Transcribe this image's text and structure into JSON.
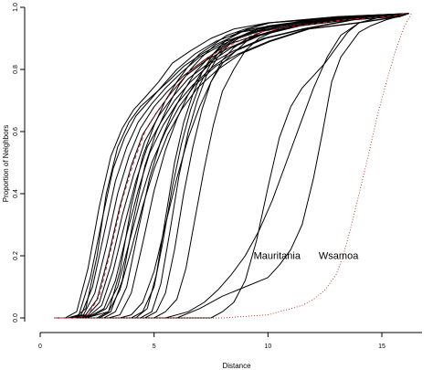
{
  "chart_data": {
    "type": "line",
    "title": "",
    "xlabel": "Distance",
    "ylabel": "Proportion of Neighbors",
    "xlim": [
      0,
      17
    ],
    "ylim": [
      0,
      1.0
    ],
    "x_ticks": [
      "0",
      "5",
      "10",
      "15"
    ],
    "y_ticks": [
      "0.0",
      "0.2",
      "0.4",
      "0.6",
      "0.8",
      "1.0"
    ],
    "grid": false,
    "legend": "none",
    "annotations": [
      {
        "text": "Mauritania",
        "x": 10.4,
        "y": 0.19
      },
      {
        "text": "Wsamoa",
        "x": 13.1,
        "y": 0.19
      }
    ],
    "colors": {
      "black_series": "#000000",
      "red_series": "#cc2222"
    },
    "series": [
      {
        "color": "#000000",
        "style": "solid",
        "x": [
          0.6,
          1.1,
          1.6,
          2.1,
          2.6,
          3.1,
          3.6,
          4.1,
          4.6,
          5.2,
          5.8,
          6.6,
          7.5,
          8.5,
          10,
          12,
          14,
          16.2
        ],
        "y": [
          0,
          0,
          0.02,
          0.16,
          0.36,
          0.52,
          0.61,
          0.67,
          0.71,
          0.76,
          0.82,
          0.86,
          0.9,
          0.93,
          0.95,
          0.96,
          0.97,
          0.98
        ]
      },
      {
        "color": "#000000",
        "style": "solid",
        "x": [
          0.6,
          1.2,
          1.7,
          2.2,
          2.7,
          3.2,
          3.7,
          4.2,
          4.8,
          5.4,
          6.0,
          6.8,
          7.7,
          8.8,
          10.4,
          12.5,
          14.6,
          16.2
        ],
        "y": [
          0,
          0,
          0.01,
          0.13,
          0.31,
          0.48,
          0.58,
          0.65,
          0.7,
          0.75,
          0.8,
          0.85,
          0.89,
          0.92,
          0.94,
          0.96,
          0.97,
          0.98
        ]
      },
      {
        "color": "#000000",
        "style": "solid",
        "x": [
          0.6,
          1.3,
          1.8,
          2.3,
          2.8,
          3.3,
          3.8,
          4.3,
          4.9,
          5.5,
          6.2,
          7.0,
          8.0,
          9.2,
          10.8,
          13,
          15,
          16.2
        ],
        "y": [
          0,
          0,
          0.01,
          0.1,
          0.27,
          0.44,
          0.55,
          0.63,
          0.69,
          0.74,
          0.79,
          0.84,
          0.88,
          0.92,
          0.94,
          0.96,
          0.97,
          0.98
        ]
      },
      {
        "color": "#000000",
        "style": "solid",
        "x": [
          0.6,
          1.4,
          1.9,
          2.4,
          2.9,
          3.4,
          3.9,
          4.4,
          5.0,
          5.6,
          6.3,
          7.2,
          8.2,
          9.5,
          11.2,
          13.4,
          15.2,
          16.2
        ],
        "y": [
          0,
          0,
          0.01,
          0.08,
          0.23,
          0.4,
          0.52,
          0.61,
          0.68,
          0.73,
          0.78,
          0.83,
          0.88,
          0.91,
          0.94,
          0.96,
          0.97,
          0.98
        ]
      },
      {
        "color": "#000000",
        "style": "solid",
        "x": [
          0.6,
          1.5,
          2.0,
          2.5,
          3.0,
          3.5,
          4.0,
          4.5,
          5.1,
          5.7,
          6.4,
          7.3,
          8.3,
          9.6,
          11.3,
          13.5,
          15.3,
          16.2
        ],
        "y": [
          0,
          0,
          0.01,
          0.06,
          0.2,
          0.36,
          0.49,
          0.59,
          0.66,
          0.72,
          0.78,
          0.83,
          0.87,
          0.91,
          0.94,
          0.96,
          0.97,
          0.98
        ]
      },
      {
        "color": "#000000",
        "style": "solid",
        "x": [
          0.6,
          1.6,
          2.1,
          2.6,
          3.1,
          3.6,
          4.1,
          4.6,
          5.2,
          5.8,
          6.5,
          7.4,
          8.4,
          9.7,
          11.4,
          13.6,
          15.4,
          16.2
        ],
        "y": [
          0,
          0,
          0.01,
          0.05,
          0.17,
          0.33,
          0.46,
          0.57,
          0.65,
          0.71,
          0.77,
          0.82,
          0.87,
          0.91,
          0.94,
          0.96,
          0.97,
          0.98
        ]
      },
      {
        "color": "#000000",
        "style": "solid",
        "x": [
          0.6,
          1.7,
          2.2,
          2.7,
          3.2,
          3.7,
          4.2,
          4.7,
          5.3,
          5.9,
          6.6,
          7.5,
          8.5,
          9.8,
          11.5,
          13.7,
          15.5,
          16.2
        ],
        "y": [
          0,
          0,
          0.01,
          0.04,
          0.15,
          0.3,
          0.44,
          0.55,
          0.63,
          0.7,
          0.76,
          0.82,
          0.86,
          0.9,
          0.93,
          0.96,
          0.97,
          0.98
        ]
      },
      {
        "color": "#000000",
        "style": "solid",
        "x": [
          0.6,
          1.8,
          2.3,
          2.8,
          3.3,
          3.8,
          4.3,
          4.8,
          5.4,
          6.0,
          6.7,
          7.6,
          8.6,
          9.9,
          11.6,
          13.8,
          15.6,
          16.2
        ],
        "y": [
          0,
          0,
          0.01,
          0.03,
          0.12,
          0.27,
          0.41,
          0.53,
          0.62,
          0.69,
          0.75,
          0.81,
          0.86,
          0.9,
          0.93,
          0.96,
          0.97,
          0.98
        ]
      },
      {
        "color": "#000000",
        "style": "solid",
        "x": [
          0.6,
          1.5,
          2.0,
          2.5,
          2.9,
          3.4,
          3.9,
          4.4,
          5.0,
          5.6,
          6.3,
          7.1,
          8.1,
          9.4,
          11.1,
          13.3,
          15.2,
          16.2
        ],
        "y": [
          0,
          0,
          0.03,
          0.2,
          0.4,
          0.55,
          0.63,
          0.68,
          0.72,
          0.76,
          0.81,
          0.85,
          0.89,
          0.92,
          0.94,
          0.96,
          0.97,
          0.98
        ]
      },
      {
        "color": "#000000",
        "style": "solid",
        "x": [
          0.6,
          1.9,
          2.4,
          2.9,
          3.4,
          3.9,
          4.4,
          4.9,
          5.5,
          6.1,
          6.8,
          7.7,
          8.7,
          10.0,
          11.7,
          13.9,
          15.7,
          16.2
        ],
        "y": [
          0,
          0,
          0.01,
          0.03,
          0.1,
          0.24,
          0.38,
          0.5,
          0.6,
          0.68,
          0.75,
          0.81,
          0.85,
          0.89,
          0.93,
          0.95,
          0.97,
          0.98
        ]
      },
      {
        "color": "#000000",
        "style": "solid",
        "x": [
          0.6,
          2.0,
          2.5,
          3.0,
          3.5,
          4.0,
          4.5,
          5.0,
          5.6,
          6.2,
          6.9,
          7.8,
          8.8,
          10.1,
          11.8,
          14.0,
          15.8,
          16.2
        ],
        "y": [
          0,
          0,
          0.01,
          0.02,
          0.09,
          0.22,
          0.36,
          0.48,
          0.59,
          0.67,
          0.74,
          0.8,
          0.85,
          0.89,
          0.93,
          0.95,
          0.97,
          0.98
        ]
      },
      {
        "color": "#000000",
        "style": "solid",
        "x": [
          0.6,
          2.5,
          3.0,
          3.5,
          4.0,
          4.5,
          5.0,
          5.5,
          6.0,
          6.5,
          7.0,
          7.6,
          8.2,
          9.0,
          10.0,
          11.5,
          13,
          16.2
        ],
        "y": [
          0,
          0,
          0.02,
          0.15,
          0.36,
          0.52,
          0.62,
          0.7,
          0.76,
          0.81,
          0.85,
          0.88,
          0.91,
          0.93,
          0.95,
          0.96,
          0.97,
          0.98
        ]
      },
      {
        "color": "#000000",
        "style": "solid",
        "x": [
          0.6,
          2.6,
          3.1,
          3.6,
          4.1,
          4.6,
          5.1,
          5.6,
          6.1,
          6.6,
          7.1,
          7.7,
          8.3,
          9.1,
          10.1,
          11.6,
          13.1,
          16.2
        ],
        "y": [
          0,
          0,
          0.02,
          0.12,
          0.32,
          0.49,
          0.6,
          0.68,
          0.75,
          0.8,
          0.84,
          0.88,
          0.9,
          0.93,
          0.95,
          0.96,
          0.97,
          0.98
        ]
      },
      {
        "color": "#000000",
        "style": "solid",
        "x": [
          0.6,
          2.8,
          3.3,
          3.8,
          4.3,
          4.8,
          5.3,
          5.8,
          6.3,
          6.8,
          7.3,
          7.9,
          8.5,
          9.3,
          10.3,
          11.8,
          13.3,
          16.2
        ],
        "y": [
          0,
          0,
          0.02,
          0.1,
          0.28,
          0.45,
          0.57,
          0.66,
          0.73,
          0.79,
          0.83,
          0.87,
          0.9,
          0.92,
          0.94,
          0.96,
          0.97,
          0.98
        ]
      },
      {
        "color": "#000000",
        "style": "solid",
        "x": [
          0.6,
          3.0,
          3.5,
          4.0,
          4.5,
          5.0,
          5.5,
          6.0,
          6.5,
          7.0,
          7.5,
          8.1,
          8.7,
          9.5,
          10.5,
          12.0,
          13.5,
          16.2
        ],
        "y": [
          0,
          0,
          0.01,
          0.08,
          0.24,
          0.41,
          0.54,
          0.64,
          0.72,
          0.78,
          0.83,
          0.87,
          0.9,
          0.92,
          0.94,
          0.96,
          0.97,
          0.98
        ]
      },
      {
        "color": "#000000",
        "style": "solid",
        "x": [
          0.6,
          4.0,
          4.5,
          5.0,
          5.4,
          5.8,
          6.2,
          6.6,
          7.0,
          7.5,
          8.0,
          8.6,
          9.2,
          10.0,
          11.0,
          12.5,
          14.0,
          16.2
        ],
        "y": [
          0,
          0,
          0.02,
          0.1,
          0.25,
          0.42,
          0.56,
          0.67,
          0.75,
          0.82,
          0.87,
          0.9,
          0.92,
          0.94,
          0.95,
          0.96,
          0.97,
          0.98
        ]
      },
      {
        "color": "#000000",
        "style": "solid",
        "x": [
          0.6,
          4.2,
          4.7,
          5.1,
          5.5,
          5.9,
          6.3,
          6.7,
          7.1,
          7.6,
          8.1,
          8.7,
          9.3,
          10.1,
          11.1,
          12.6,
          14.1,
          16.2
        ],
        "y": [
          0,
          0,
          0.03,
          0.14,
          0.32,
          0.5,
          0.63,
          0.72,
          0.79,
          0.85,
          0.89,
          0.92,
          0.93,
          0.94,
          0.95,
          0.96,
          0.97,
          0.98
        ]
      },
      {
        "color": "#000000",
        "style": "solid",
        "x": [
          0.6,
          4.4,
          4.9,
          5.3,
          5.7,
          6.1,
          6.5,
          6.9,
          7.3,
          7.8,
          8.3,
          8.9,
          9.5,
          10.3,
          11.3,
          12.8,
          14.3,
          16.2
        ],
        "y": [
          0,
          0,
          0.02,
          0.11,
          0.28,
          0.46,
          0.6,
          0.7,
          0.78,
          0.84,
          0.88,
          0.91,
          0.93,
          0.94,
          0.95,
          0.96,
          0.97,
          0.98
        ]
      },
      {
        "color": "#000000",
        "style": "solid",
        "x": [
          0.6,
          4.6,
          5.1,
          5.5,
          5.9,
          6.3,
          6.7,
          7.1,
          7.5,
          8.0,
          8.5,
          9.1,
          9.7,
          10.5,
          11.5,
          13.0,
          14.5,
          16.2
        ],
        "y": [
          0,
          0,
          0.02,
          0.08,
          0.22,
          0.4,
          0.55,
          0.67,
          0.76,
          0.83,
          0.87,
          0.9,
          0.92,
          0.94,
          0.95,
          0.96,
          0.97,
          0.98
        ]
      },
      {
        "color": "#000000",
        "style": "solid",
        "x": [
          0.6,
          5.0,
          5.5,
          6.0,
          6.4,
          6.8,
          7.2,
          7.6,
          8.0,
          8.5,
          9.0,
          9.6,
          10.2,
          11.0,
          12.0,
          13.5,
          15.0,
          16.2
        ],
        "y": [
          0,
          0,
          0.02,
          0.06,
          0.16,
          0.32,
          0.48,
          0.62,
          0.73,
          0.8,
          0.86,
          0.9,
          0.92,
          0.94,
          0.95,
          0.96,
          0.97,
          0.98
        ]
      },
      {
        "color": "#000000",
        "style": "solid",
        "x": [
          0.6,
          3.5,
          4.0,
          4.5,
          5.0,
          5.5,
          6.0,
          6.5,
          7.0,
          7.5,
          8.0,
          8.6,
          9.2,
          10.0,
          11.0,
          12.5,
          14.0,
          16.2
        ],
        "y": [
          0,
          0,
          0.01,
          0.05,
          0.15,
          0.3,
          0.45,
          0.58,
          0.68,
          0.76,
          0.82,
          0.86,
          0.9,
          0.92,
          0.94,
          0.96,
          0.97,
          0.98
        ]
      },
      {
        "color": "#000000",
        "style": "solid",
        "x": [
          0.6,
          5.5,
          6.5,
          7.2,
          7.8,
          8.4,
          9.0,
          9.6,
          10.2,
          10.8,
          11.4,
          12.0,
          12.6,
          13.2,
          14.0,
          15.0,
          16.2
        ],
        "y": [
          0,
          0,
          0.02,
          0.05,
          0.09,
          0.14,
          0.2,
          0.28,
          0.38,
          0.5,
          0.62,
          0.74,
          0.84,
          0.91,
          0.95,
          0.97,
          0.98
        ]
      },
      {
        "color": "#000000",
        "style": "solid",
        "x": [
          0.6,
          7.5,
          8.0,
          8.5,
          9.0,
          9.5,
          10.0,
          10.5,
          11.0,
          11.5,
          12.0,
          12.5,
          13.0,
          13.5,
          14.0,
          15.0,
          16.2
        ],
        "y": [
          0,
          0,
          0.02,
          0.05,
          0.12,
          0.25,
          0.42,
          0.58,
          0.68,
          0.74,
          0.78,
          0.82,
          0.87,
          0.92,
          0.95,
          0.97,
          0.98
        ]
      },
      {
        "color": "#000000",
        "style": "solid",
        "x": [
          0.6,
          6.0,
          7.0,
          8.0,
          9.0,
          10.0,
          10.5,
          11.0,
          11.5,
          12.0,
          12.4,
          12.8,
          13.2,
          13.6,
          14.0,
          14.5,
          15.2,
          16.2
        ],
        "y": [
          0,
          0,
          0.03,
          0.07,
          0.1,
          0.13,
          0.17,
          0.22,
          0.3,
          0.45,
          0.6,
          0.76,
          0.84,
          0.88,
          0.92,
          0.94,
          0.96,
          0.98
        ]
      },
      {
        "color": "#cc2222",
        "style": "dotted",
        "x": [
          0.6,
          8.0,
          9.0,
          10.0,
          10.5,
          11.0,
          11.5,
          12.0,
          12.5,
          13.0,
          13.3,
          13.6,
          14.0,
          14.4,
          14.8,
          15.2,
          15.6,
          16.0,
          16.3
        ],
        "y": [
          0,
          0,
          0.005,
          0.01,
          0.02,
          0.03,
          0.04,
          0.06,
          0.09,
          0.14,
          0.2,
          0.28,
          0.4,
          0.52,
          0.65,
          0.76,
          0.86,
          0.94,
          0.98
        ]
      },
      {
        "color": "#cc2222",
        "style": "dashed",
        "x": [
          0.6,
          1.6,
          2.1,
          2.6,
          3.1,
          3.6,
          4.1,
          4.6,
          5.2,
          5.8,
          6.5,
          7.4,
          8.4,
          9.6,
          11.2,
          13.4,
          15.2,
          16.2
        ],
        "y": [
          0,
          0,
          0.01,
          0.07,
          0.22,
          0.38,
          0.5,
          0.6,
          0.67,
          0.73,
          0.79,
          0.84,
          0.88,
          0.92,
          0.94,
          0.96,
          0.97,
          0.98
        ]
      }
    ]
  }
}
